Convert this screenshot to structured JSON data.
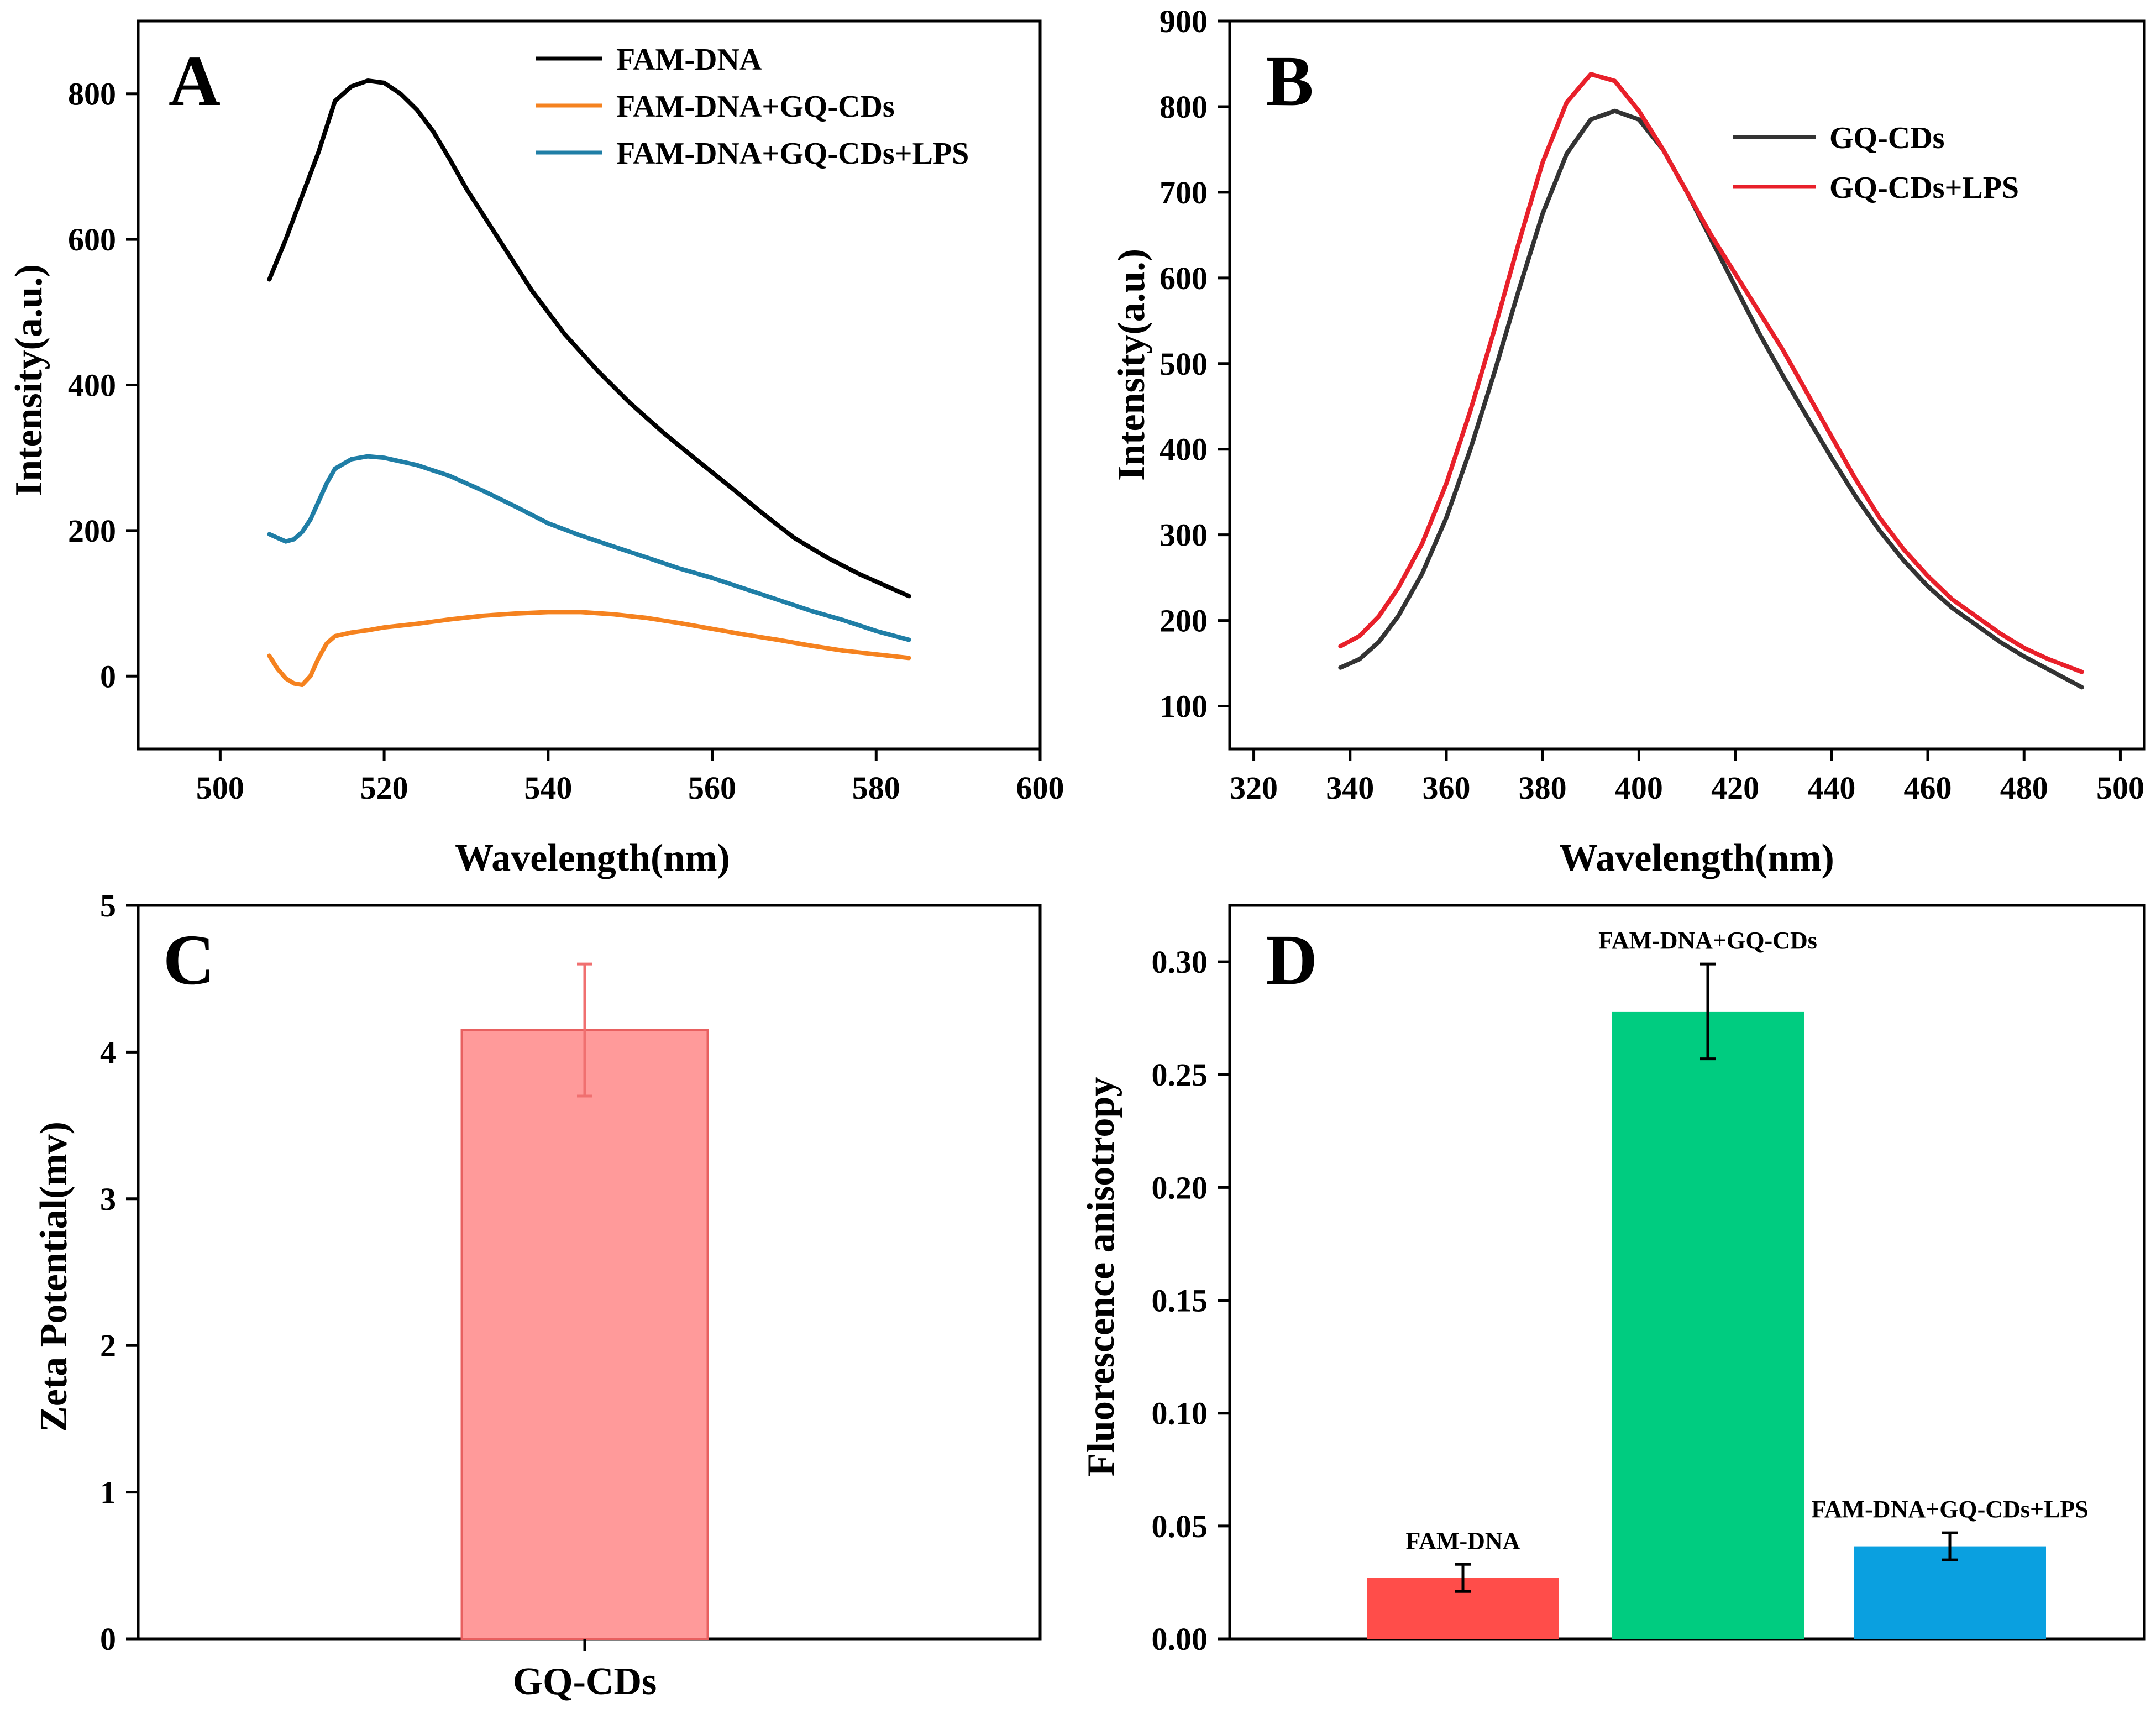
{
  "chart_data": [
    {
      "id": "A",
      "type": "line",
      "panel_label": "A",
      "xlabel": "Wavelength(nm)",
      "ylabel": "Intensity(a.u.)",
      "xlim": [
        490,
        600
      ],
      "ylim": [
        -100,
        900
      ],
      "xticks": [
        500,
        520,
        540,
        560,
        580,
        600
      ],
      "yticks": [
        0,
        200,
        400,
        600,
        800
      ],
      "legend_position": "top-right",
      "series": [
        {
          "name": "FAM-DNA",
          "color": "#000000",
          "x": [
            506,
            508,
            510,
            512,
            514,
            516,
            518,
            520,
            522,
            524,
            526,
            528,
            530,
            534,
            538,
            542,
            546,
            550,
            554,
            558,
            562,
            566,
            570,
            574,
            578,
            582,
            584
          ],
          "y": [
            545,
            600,
            660,
            720,
            790,
            810,
            818,
            815,
            800,
            778,
            748,
            710,
            670,
            600,
            530,
            470,
            420,
            375,
            335,
            298,
            262,
            225,
            190,
            163,
            140,
            120,
            110
          ]
        },
        {
          "name": "FAM-DNA+GQ-CDs",
          "color": "#f5821f",
          "x": [
            506,
            507,
            508,
            509,
            510,
            511,
            512,
            513,
            514,
            516,
            518,
            520,
            524,
            528,
            532,
            536,
            540,
            544,
            548,
            552,
            556,
            560,
            564,
            568,
            572,
            576,
            580,
            584
          ],
          "y": [
            28,
            10,
            -3,
            -10,
            -12,
            0,
            25,
            45,
            55,
            60,
            63,
            67,
            72,
            78,
            83,
            86,
            88,
            88,
            85,
            80,
            73,
            65,
            57,
            50,
            42,
            35,
            30,
            25
          ]
        },
        {
          "name": "FAM-DNA+GQ-CDs+LPS",
          "color": "#1f7ea6",
          "x": [
            506,
            507,
            508,
            509,
            510,
            511,
            512,
            513,
            514,
            516,
            518,
            520,
            524,
            528,
            532,
            536,
            540,
            544,
            548,
            552,
            556,
            560,
            564,
            568,
            572,
            576,
            580,
            584
          ],
          "y": [
            195,
            190,
            185,
            188,
            198,
            215,
            240,
            265,
            285,
            298,
            302,
            300,
            290,
            275,
            255,
            233,
            210,
            193,
            178,
            163,
            148,
            135,
            120,
            105,
            90,
            77,
            62,
            50
          ]
        }
      ]
    },
    {
      "id": "B",
      "type": "line",
      "panel_label": "B",
      "xlabel": "Wavelength(nm)",
      "ylabel": "Intensity(a.u.)",
      "xlim": [
        315,
        505
      ],
      "ylim": [
        50,
        900
      ],
      "xticks": [
        320,
        340,
        360,
        380,
        400,
        420,
        440,
        460,
        480,
        500
      ],
      "yticks": [
        100,
        200,
        300,
        400,
        500,
        600,
        700,
        800,
        900
      ],
      "legend_position": "top-right",
      "series": [
        {
          "name": "GQ-CDs",
          "color": "#333333",
          "x": [
            338,
            342,
            346,
            350,
            355,
            360,
            365,
            370,
            375,
            380,
            385,
            390,
            395,
            400,
            405,
            410,
            415,
            420,
            425,
            430,
            435,
            440,
            445,
            450,
            455,
            460,
            465,
            470,
            475,
            480,
            485,
            492
          ],
          "y": [
            145,
            155,
            175,
            205,
            255,
            320,
            400,
            490,
            585,
            675,
            745,
            785,
            795,
            785,
            750,
            700,
            645,
            590,
            535,
            485,
            437,
            390,
            345,
            305,
            270,
            240,
            215,
            195,
            175,
            158,
            143,
            122
          ]
        },
        {
          "name": "GQ-CDs+LPS",
          "color": "#e8202a",
          "x": [
            338,
            342,
            346,
            350,
            355,
            360,
            365,
            370,
            375,
            380,
            385,
            390,
            395,
            400,
            405,
            410,
            415,
            420,
            425,
            430,
            435,
            440,
            445,
            450,
            455,
            460,
            465,
            470,
            475,
            480,
            485,
            492
          ],
          "y": [
            170,
            182,
            205,
            238,
            290,
            360,
            445,
            540,
            640,
            735,
            805,
            838,
            830,
            795,
            750,
            700,
            650,
            605,
            560,
            515,
            465,
            415,
            365,
            320,
            283,
            252,
            225,
            205,
            185,
            168,
            155,
            140
          ]
        }
      ]
    },
    {
      "id": "C",
      "type": "bar",
      "panel_label": "C",
      "xlabel": "",
      "ylabel": "Zeta Potential(mv)",
      "ylim": [
        0,
        5
      ],
      "yticks": [
        0,
        1,
        2,
        3,
        4,
        5
      ],
      "categories": [
        "GQ-CDs"
      ],
      "values": [
        4.15
      ],
      "errors": [
        0.45
      ],
      "colors": [
        "#ff9a9a"
      ],
      "edge_colors": [
        "#e86060"
      ]
    },
    {
      "id": "D",
      "type": "bar",
      "panel_label": "D",
      "xlabel": "",
      "ylabel": "Fluorescence anisotropy",
      "ylim": [
        0,
        0.325
      ],
      "yticks": [
        "0.00",
        "0.05",
        "0.10",
        "0.15",
        "0.20",
        "0.25",
        "0.30"
      ],
      "categories": [
        "FAM-DNA",
        "FAM-DNA+GQ-CDs",
        "FAM-DNA+GQ-CDs+LPS"
      ],
      "values": [
        0.027,
        0.278,
        0.041
      ],
      "errors": [
        0.006,
        0.021,
        0.006
      ],
      "colors": [
        "#ff4d4a",
        "#00cc80",
        "#0aa0e0"
      ]
    }
  ]
}
